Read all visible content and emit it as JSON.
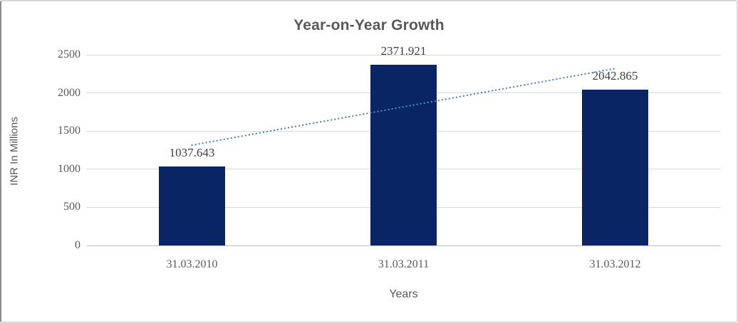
{
  "chart_data": {
    "type": "bar",
    "title": "Year-on-Year Growth",
    "xlabel": "Years",
    "ylabel": "INR In Millions",
    "categories": [
      "31.03.2010",
      "31.03.2011",
      "31.03.2012"
    ],
    "values": [
      1037.643,
      2371.921,
      2042.865
    ],
    "data_labels": [
      "1037.643",
      "2371.921",
      "2042.865"
    ],
    "yticks": [
      0,
      500,
      1000,
      1500,
      2000,
      2500
    ],
    "ylim": [
      0,
      2500
    ],
    "grid": true,
    "legend": "none",
    "trendline": {
      "type": "linear",
      "style": "dotted",
      "values": [
        1314.9,
        1817.5,
        2320.1
      ]
    },
    "colors": {
      "bar": "#0a2563",
      "trendline": "#4b86c8",
      "gridline": "#d9d9d9",
      "axis_line": "#c0c0c0",
      "title_text": "#595959",
      "tick_text": "#595959",
      "data_label_text": "#3f3f3f"
    }
  }
}
